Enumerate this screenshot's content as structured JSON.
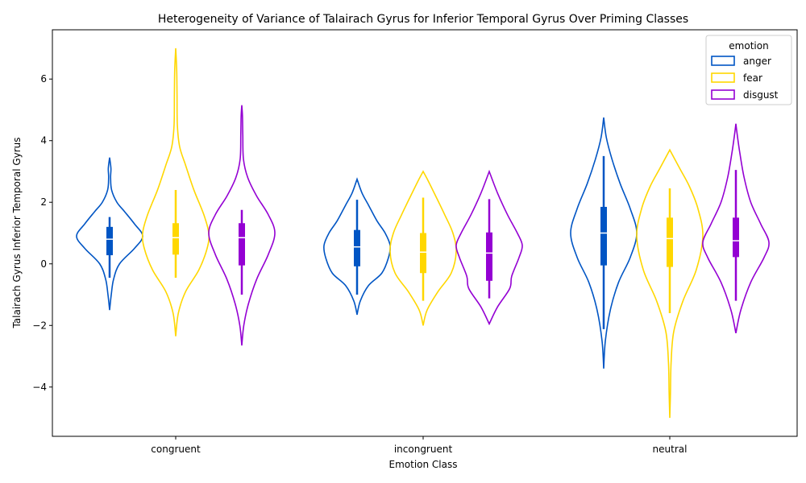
{
  "chart_data": {
    "type": "violin",
    "title": "Heterogeneity of Variance of Talairach Gyrus for Inferior Temporal Gyrus Over Priming Classes",
    "xlabel": "Emotion Class",
    "ylabel": "Talairach Gyrus Inferior Temporal Gyrus",
    "categories": [
      "congruent",
      "incongruent",
      "neutral"
    ],
    "ylim": [
      -5.6,
      7.6
    ],
    "yticks": [
      -4,
      -2,
      0,
      2,
      4,
      6
    ],
    "ytick_labels": [
      "−4",
      "−2",
      "0",
      "2",
      "4",
      "6"
    ],
    "grid": false,
    "legend": {
      "title": "emotion",
      "placement": "top-right"
    },
    "colors": {
      "anger": "#0055c4",
      "fear": "#ffd700",
      "disgust": "#9400d3",
      "median": "#ffffff"
    },
    "series": [
      {
        "name": "anger",
        "stats": [
          {
            "min": -1.5,
            "max": 3.45,
            "q1": 0.28,
            "median": 0.8,
            "q3": 1.2,
            "whisker_low": -0.45,
            "whisker_high": 1.52,
            "profile": [
              [
                -1.5,
                0.0
              ],
              [
                -1.0,
                0.05
              ],
              [
                -0.5,
                0.12
              ],
              [
                0.0,
                0.3
              ],
              [
                0.5,
                0.75
              ],
              [
                0.9,
                1.0
              ],
              [
                1.3,
                0.75
              ],
              [
                1.7,
                0.45
              ],
              [
                2.0,
                0.22
              ],
              [
                2.4,
                0.06
              ],
              [
                2.8,
                0.03
              ],
              [
                3.1,
                0.04
              ],
              [
                3.45,
                0.0
              ]
            ]
          },
          {
            "min": -1.65,
            "max": 2.75,
            "q1": -0.08,
            "median": 0.55,
            "q3": 1.1,
            "whisker_low": -1.0,
            "whisker_high": 2.08,
            "profile": [
              [
                -1.65,
                0.0
              ],
              [
                -1.2,
                0.1
              ],
              [
                -0.7,
                0.35
              ],
              [
                -0.3,
                0.75
              ],
              [
                0.2,
                0.95
              ],
              [
                0.6,
                1.0
              ],
              [
                1.0,
                0.85
              ],
              [
                1.4,
                0.6
              ],
              [
                1.9,
                0.35
              ],
              [
                2.3,
                0.15
              ],
              [
                2.75,
                0.0
              ]
            ]
          },
          {
            "min": -3.4,
            "max": 4.75,
            "q1": -0.05,
            "median": 1.0,
            "q3": 1.85,
            "whisker_low": -2.12,
            "whisker_high": 3.5,
            "profile": [
              [
                -3.4,
                0.0
              ],
              [
                -2.5,
                0.05
              ],
              [
                -1.5,
                0.2
              ],
              [
                -0.6,
                0.45
              ],
              [
                0.2,
                0.8
              ],
              [
                1.0,
                1.0
              ],
              [
                1.8,
                0.8
              ],
              [
                2.6,
                0.5
              ],
              [
                3.4,
                0.25
              ],
              [
                4.1,
                0.08
              ],
              [
                4.75,
                0.0
              ]
            ]
          }
        ]
      },
      {
        "name": "fear",
        "stats": [
          {
            "min": -2.35,
            "max": 7.0,
            "q1": 0.3,
            "median": 0.85,
            "q3": 1.32,
            "whisker_low": -0.45,
            "whisker_high": 2.4,
            "profile": [
              [
                -2.35,
                0.0
              ],
              [
                -1.6,
                0.08
              ],
              [
                -0.9,
                0.3
              ],
              [
                -0.2,
                0.7
              ],
              [
                0.5,
                0.95
              ],
              [
                1.0,
                1.0
              ],
              [
                1.6,
                0.85
              ],
              [
                2.4,
                0.55
              ],
              [
                3.2,
                0.3
              ],
              [
                3.8,
                0.12
              ],
              [
                4.5,
                0.05
              ],
              [
                5.5,
                0.04
              ],
              [
                6.3,
                0.03
              ],
              [
                7.0,
                0.0
              ]
            ]
          },
          {
            "min": -2.0,
            "max": 3.0,
            "q1": -0.3,
            "median": 0.38,
            "q3": 1.0,
            "whisker_low": -1.2,
            "whisker_high": 2.15,
            "profile": [
              [
                -2.0,
                0.0
              ],
              [
                -1.5,
                0.12
              ],
              [
                -0.9,
                0.45
              ],
              [
                -0.3,
                0.85
              ],
              [
                0.4,
                1.0
              ],
              [
                1.0,
                0.9
              ],
              [
                1.6,
                0.65
              ],
              [
                2.2,
                0.38
              ],
              [
                2.7,
                0.15
              ],
              [
                3.0,
                0.0
              ]
            ]
          },
          {
            "min": -5.0,
            "max": 3.7,
            "q1": -0.1,
            "median": 0.82,
            "q3": 1.5,
            "whisker_low": -1.6,
            "whisker_high": 2.45,
            "profile": [
              [
                -5.0,
                0.0
              ],
              [
                -4.2,
                0.02
              ],
              [
                -3.2,
                0.04
              ],
              [
                -2.2,
                0.12
              ],
              [
                -1.2,
                0.4
              ],
              [
                -0.2,
                0.8
              ],
              [
                0.9,
                1.0
              ],
              [
                1.8,
                0.85
              ],
              [
                2.5,
                0.6
              ],
              [
                3.1,
                0.3
              ],
              [
                3.7,
                0.0
              ]
            ]
          }
        ]
      },
      {
        "name": "disgust",
        "stats": [
          {
            "min": -2.65,
            "max": 5.15,
            "q1": -0.05,
            "median": 0.85,
            "q3": 1.32,
            "whisker_low": -1.0,
            "whisker_high": 1.75,
            "profile": [
              [
                -2.65,
                0.0
              ],
              [
                -2.0,
                0.06
              ],
              [
                -1.3,
                0.2
              ],
              [
                -0.5,
                0.45
              ],
              [
                0.3,
                0.8
              ],
              [
                1.0,
                1.0
              ],
              [
                1.6,
                0.8
              ],
              [
                2.2,
                0.45
              ],
              [
                2.8,
                0.18
              ],
              [
                3.4,
                0.05
              ],
              [
                4.2,
                0.03
              ],
              [
                4.8,
                0.02
              ],
              [
                5.15,
                0.0
              ]
            ]
          },
          {
            "min": -1.95,
            "max": 3.0,
            "q1": -0.55,
            "median": 0.35,
            "q3": 1.02,
            "whisker_low": -1.12,
            "whisker_high": 2.1,
            "profile": [
              [
                -1.95,
                0.0
              ],
              [
                -1.4,
                0.25
              ],
              [
                -0.8,
                0.62
              ],
              [
                -0.4,
                0.68
              ],
              [
                0.2,
                0.9
              ],
              [
                0.6,
                1.0
              ],
              [
                1.0,
                0.85
              ],
              [
                1.6,
                0.55
              ],
              [
                2.3,
                0.25
              ],
              [
                3.0,
                0.0
              ]
            ]
          },
          {
            "min": -2.25,
            "max": 4.55,
            "q1": 0.22,
            "median": 0.75,
            "q3": 1.5,
            "whisker_low": -1.2,
            "whisker_high": 3.05,
            "profile": [
              [
                -2.25,
                0.0
              ],
              [
                -1.5,
                0.15
              ],
              [
                -0.6,
                0.45
              ],
              [
                0.2,
                0.85
              ],
              [
                0.7,
                1.0
              ],
              [
                1.3,
                0.75
              ],
              [
                2.0,
                0.45
              ],
              [
                2.8,
                0.25
              ],
              [
                3.6,
                0.12
              ],
              [
                4.2,
                0.04
              ],
              [
                4.55,
                0.0
              ]
            ]
          }
        ]
      }
    ]
  }
}
